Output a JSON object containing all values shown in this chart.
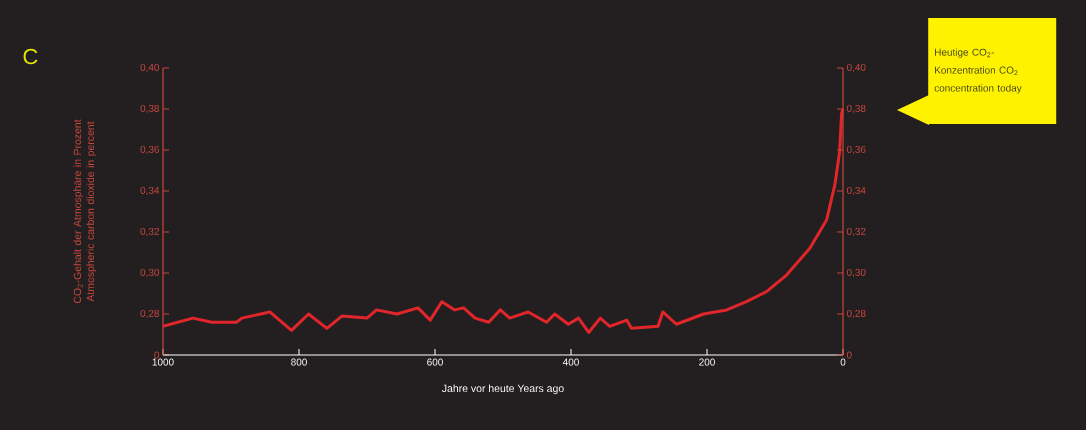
{
  "chart_data": {
    "type": "line",
    "xlabel": "Jahre vor heute    Years ago",
    "ylabel": "CO$_{2}$-Gehalt der Atmosphäre in Prozent Atmospheric carbon dioxide in percent",
    "x": [
      1000,
      956,
      928,
      892,
      884,
      843,
      811,
      786,
      759,
      737,
      700,
      686,
      656,
      625,
      607,
      590,
      571,
      558,
      541,
      521,
      504,
      490,
      463,
      436,
      424,
      404,
      389,
      374,
      357,
      343,
      318,
      311,
      272,
      265,
      245,
      205,
      171,
      142,
      112,
      83,
      49,
      24,
      12,
      5,
      2,
      0
    ],
    "values": [
      0.274,
      0.278,
      0.276,
      0.276,
      0.278,
      0.281,
      0.272,
      0.28,
      0.273,
      0.279,
      0.278,
      0.282,
      0.28,
      0.283,
      0.277,
      0.286,
      0.282,
      0.283,
      0.278,
      0.276,
      0.282,
      0.278,
      0.281,
      0.276,
      0.28,
      0.275,
      0.278,
      0.271,
      0.278,
      0.274,
      0.277,
      0.273,
      0.274,
      0.281,
      0.275,
      0.28,
      0.282,
      0.286,
      0.291,
      0.299,
      0.312,
      0.326,
      0.343,
      0.359,
      0.378,
      0.38
    ],
    "color": "#e1262b",
    "xlim": [
      1000,
      0
    ],
    "xticks": [
      1000,
      800,
      600,
      400,
      200,
      0
    ],
    "ylim": [
      0.26,
      0.4
    ],
    "yticks": [
      {
        "value": 0.26,
        "label": "0"
      },
      {
        "value": 0.28,
        "label": "0,28"
      },
      {
        "value": 0.3,
        "label": "0,30"
      },
      {
        "value": 0.32,
        "label": "0,32"
      },
      {
        "value": 0.34,
        "label": "0,34"
      },
      {
        "value": 0.36,
        "label": "0,36"
      },
      {
        "value": 0.38,
        "label": "0,38"
      },
      {
        "value": 0.4,
        "label": "0,40"
      }
    ],
    "y2lim": [
      0.26,
      0.4
    ],
    "y2ticks": [
      {
        "value": 0.26,
        "label": "0"
      },
      {
        "value": 0.28,
        "label": "0,28"
      },
      {
        "value": 0.3,
        "label": "0,30"
      },
      {
        "value": 0.32,
        "label": "0,32"
      },
      {
        "value": 0.34,
        "label": "0,34"
      },
      {
        "value": 0.36,
        "label": "0,36"
      },
      {
        "value": 0.38,
        "label": "0,38"
      },
      {
        "value": 0.4,
        "label": "0,40"
      }
    ],
    "annotations": [
      "C",
      "Heutige CO$_{2}$-Konzentration CO$_{2}$ concentration today"
    ]
  }
}
